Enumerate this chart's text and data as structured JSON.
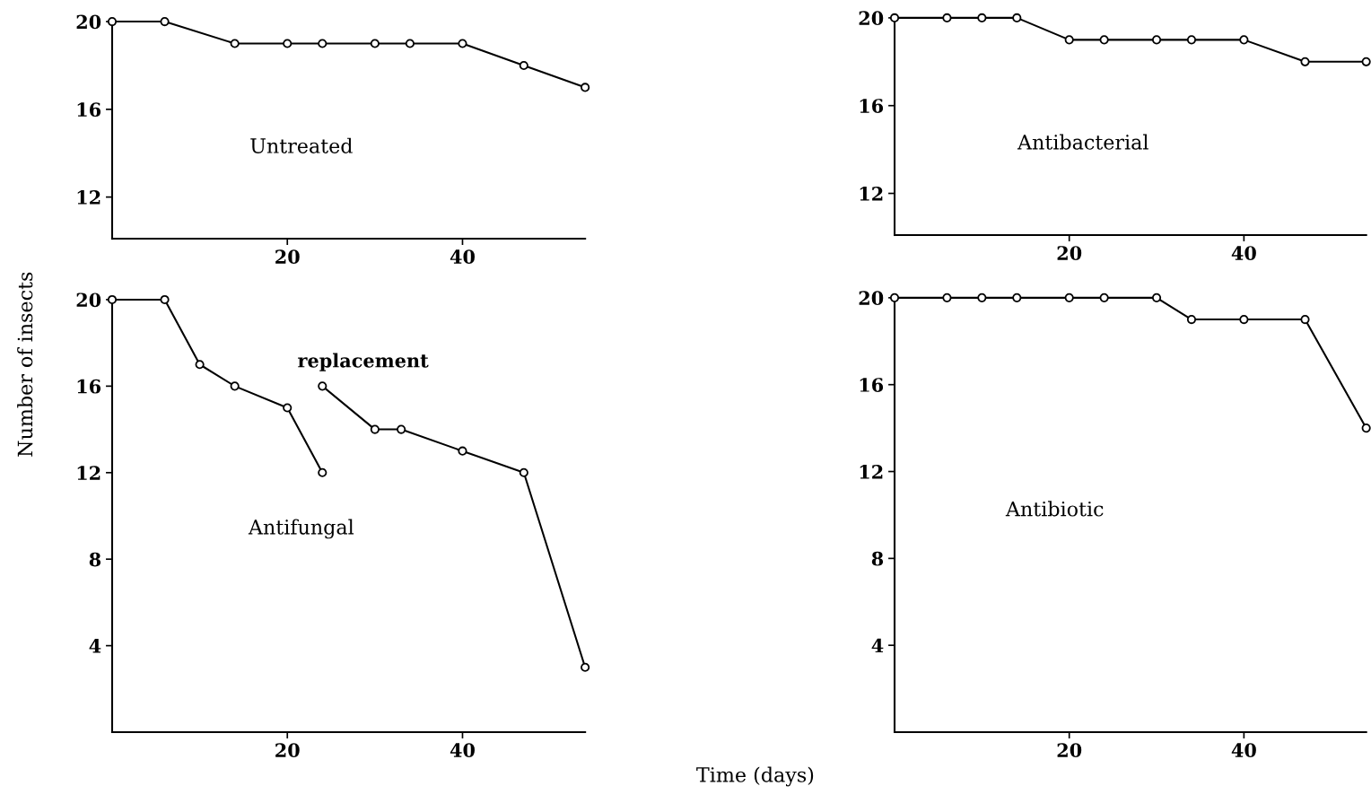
{
  "chart_data": [
    {
      "type": "line",
      "annotations": [
        "Untreated"
      ],
      "xlim": [
        0,
        54
      ],
      "xticks": [
        20,
        40
      ],
      "ylim": [
        10.1,
        20
      ],
      "yticks": [
        12,
        16,
        20
      ],
      "marker": "circle",
      "grid": false,
      "legend": false,
      "series": [
        {
          "color": "#000000",
          "x": [
            0,
            6,
            14,
            20,
            24,
            30,
            34,
            40,
            47,
            54
          ],
          "values": [
            20,
            20,
            19,
            19,
            19,
            19,
            19,
            19,
            18,
            17
          ]
        }
      ]
    },
    {
      "type": "line",
      "annotations": [
        "Antibacterial"
      ],
      "xlim": [
        0,
        54
      ],
      "xticks": [
        20,
        40
      ],
      "ylim": [
        10.1,
        20
      ],
      "yticks": [
        12,
        16,
        20
      ],
      "marker": "circle",
      "grid": false,
      "legend": false,
      "series": [
        {
          "color": "#000000",
          "x": [
            0,
            6,
            10,
            14,
            20,
            24,
            30,
            34,
            40,
            47,
            54
          ],
          "values": [
            20,
            20,
            20,
            20,
            19,
            19,
            19,
            19,
            19,
            18,
            18
          ]
        }
      ]
    },
    {
      "type": "line",
      "annotations": [
        "Antifungal"
      ],
      "xlabel": "Time (days)",
      "ylabel": "Number of insects",
      "xlim": [
        0,
        54
      ],
      "xticks": [
        20,
        40
      ],
      "ylim": [
        0,
        20
      ],
      "yticks": [
        4,
        8,
        12,
        16,
        20
      ],
      "marker": "circle",
      "grid": false,
      "legend": false,
      "series": [
        {
          "color": "#000000",
          "x": [
            0,
            6,
            10,
            14,
            20,
            24
          ],
          "values": [
            20,
            20,
            17,
            16,
            15,
            12
          ]
        },
        {
          "name": "replacement",
          "color": "#000000",
          "x": [
            24,
            30,
            33,
            40,
            47,
            54
          ],
          "values": [
            16,
            14,
            14,
            13,
            12,
            3
          ]
        }
      ]
    },
    {
      "type": "line",
      "annotations": [
        "Antibiotic"
      ],
      "xlim": [
        0,
        54
      ],
      "xticks": [
        20,
        40
      ],
      "ylim": [
        0,
        20
      ],
      "yticks": [
        4,
        8,
        12,
        16,
        20
      ],
      "marker": "circle",
      "grid": false,
      "legend": false,
      "series": [
        {
          "color": "#000000",
          "x": [
            0,
            6,
            10,
            14,
            20,
            24,
            30,
            34,
            40,
            47,
            54
          ],
          "values": [
            20,
            20,
            20,
            20,
            20,
            20,
            20,
            19,
            19,
            19,
            14
          ]
        }
      ]
    }
  ]
}
